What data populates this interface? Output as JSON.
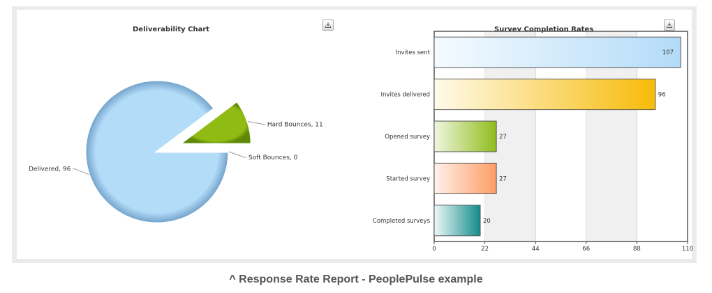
{
  "caption": "^ Response Rate Report - PeoplePulse example",
  "charts": {
    "pie": {
      "title": "Deliverability Chart",
      "export_icon": "download-icon"
    },
    "bar": {
      "title": "Survey Completion Rates",
      "export_icon": "download-icon"
    }
  },
  "chart_data": [
    {
      "type": "pie",
      "title": "Deliverability Chart",
      "slices": [
        {
          "label": "Delivered",
          "value": 96,
          "color": "#b3dcf9",
          "data_label": "Delivered, 96"
        },
        {
          "label": "Hard Bounces",
          "value": 11,
          "color": "#8fbb12",
          "data_label": "Hard Bounces, 11",
          "exploded": true
        },
        {
          "label": "Soft Bounces",
          "value": 0,
          "color": "#d9d9d9",
          "data_label": "Soft Bounces, 0"
        }
      ]
    },
    {
      "type": "bar",
      "orientation": "horizontal",
      "title": "Survey Completion Rates",
      "categories": [
        "Invites sent",
        "Invites delivered",
        "Opened survey",
        "Started survey",
        "Completed surveys"
      ],
      "values": [
        107,
        96,
        27,
        27,
        20
      ],
      "data_labels": [
        "107",
        "96",
        "27",
        "27",
        "20"
      ],
      "colors": [
        [
          "#f5fbff",
          "#b3dbf8"
        ],
        [
          "#fffbea",
          "#f7bb08"
        ],
        [
          "#f0f6e0",
          "#8fbd1c"
        ],
        [
          "#fff1ea",
          "#fe9d65"
        ],
        [
          "#eef8f8",
          "#138c8c"
        ]
      ],
      "xlim": [
        0,
        110
      ],
      "ticks": [
        "0",
        "22",
        "44",
        "66",
        "88",
        "110"
      ],
      "grid": "alternating vertical bands"
    }
  ]
}
